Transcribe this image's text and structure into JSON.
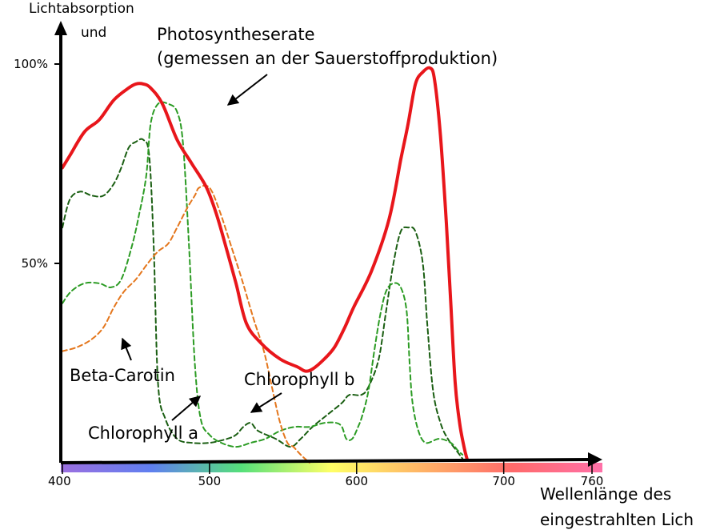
{
  "chart_data": {
    "type": "line",
    "y_axis": {
      "label_lines": [
        "Lichtabsorption",
        "und"
      ],
      "ticks": [
        {
          "value": 50,
          "label": "50%"
        },
        {
          "value": 100,
          "label": "100%"
        }
      ],
      "ylim": [
        0,
        100
      ]
    },
    "x_axis": {
      "label_lines": [
        "Wellenlänge des",
        "eingestrahlten Lich"
      ],
      "ticks": [
        {
          "value": 400,
          "label": "400"
        },
        {
          "value": 500,
          "label": "500"
        },
        {
          "value": 600,
          "label": "600"
        },
        {
          "value": 700,
          "label": "700"
        },
        {
          "value": 760,
          "label": "760"
        }
      ],
      "xlim": [
        400,
        760
      ],
      "spectrum_colors": [
        "#9c6fe0",
        "#5f7ff0",
        "#55e07a",
        "#ffff66",
        "#ffb366",
        "#ff6a6a",
        "#ff70a8"
      ]
    },
    "grid": false,
    "series": [
      {
        "name": "Photosyntheserate",
        "color": "#e8161b",
        "dashed": false,
        "points": [
          [
            400,
            74
          ],
          [
            405,
            77
          ],
          [
            415,
            83
          ],
          [
            425,
            86
          ],
          [
            435,
            91
          ],
          [
            445,
            94
          ],
          [
            450,
            95
          ],
          [
            455,
            95
          ],
          [
            460,
            94
          ],
          [
            468,
            90
          ],
          [
            478,
            81
          ],
          [
            488,
            75
          ],
          [
            498,
            69
          ],
          [
            505,
            62
          ],
          [
            512,
            53
          ],
          [
            518,
            45
          ],
          [
            525,
            35
          ],
          [
            535,
            30
          ],
          [
            548,
            26
          ],
          [
            560,
            24
          ],
          [
            565,
            23
          ],
          [
            570,
            23.5
          ],
          [
            578,
            26
          ],
          [
            585,
            29
          ],
          [
            592,
            34
          ],
          [
            598,
            39
          ],
          [
            610,
            48
          ],
          [
            622,
            61
          ],
          [
            630,
            76
          ],
          [
            635,
            85
          ],
          [
            640,
            95
          ],
          [
            645,
            98
          ],
          [
            650,
            99
          ],
          [
            653,
            96
          ],
          [
            657,
            82
          ],
          [
            661,
            60
          ],
          [
            664,
            40
          ],
          [
            667,
            20
          ],
          [
            670,
            10
          ],
          [
            673,
            4
          ],
          [
            675,
            1
          ]
        ]
      },
      {
        "name": "Chlorophyll a",
        "color": "#1a5e12",
        "dashed": true,
        "points": [
          [
            400,
            59
          ],
          [
            405,
            66
          ],
          [
            412,
            68
          ],
          [
            420,
            67
          ],
          [
            428,
            67
          ],
          [
            435,
            70
          ],
          [
            440,
            74
          ],
          [
            445,
            79
          ],
          [
            450,
            80.5
          ],
          [
            455,
            81
          ],
          [
            459,
            77
          ],
          [
            462,
            55
          ],
          [
            465,
            20
          ],
          [
            470,
            11
          ],
          [
            478,
            6
          ],
          [
            488,
            5
          ],
          [
            500,
            5
          ],
          [
            512,
            6
          ],
          [
            518,
            7
          ],
          [
            523,
            9
          ],
          [
            528,
            10
          ],
          [
            533,
            8
          ],
          [
            545,
            6
          ],
          [
            555,
            4
          ],
          [
            562,
            6
          ],
          [
            570,
            9
          ],
          [
            580,
            12
          ],
          [
            590,
            15
          ],
          [
            595,
            17
          ],
          [
            603,
            17
          ],
          [
            608,
            19
          ],
          [
            615,
            26
          ],
          [
            620,
            38
          ],
          [
            625,
            50
          ],
          [
            630,
            58
          ],
          [
            635,
            59
          ],
          [
            640,
            58
          ],
          [
            645,
            50
          ],
          [
            648,
            35
          ],
          [
            652,
            18
          ],
          [
            657,
            10
          ],
          [
            662,
            6
          ],
          [
            668,
            3
          ],
          [
            672,
            1
          ]
        ]
      },
      {
        "name": "Chlorophyll b",
        "color": "#2b9b23",
        "dashed": true,
        "points": [
          [
            400,
            40
          ],
          [
            406,
            43
          ],
          [
            415,
            45
          ],
          [
            425,
            45
          ],
          [
            433,
            44
          ],
          [
            440,
            46
          ],
          [
            447,
            54
          ],
          [
            452,
            62
          ],
          [
            457,
            72
          ],
          [
            460,
            85
          ],
          [
            465,
            90
          ],
          [
            472,
            90
          ],
          [
            478,
            88
          ],
          [
            482,
            80
          ],
          [
            486,
            55
          ],
          [
            490,
            25
          ],
          [
            494,
            11
          ],
          [
            500,
            7
          ],
          [
            508,
            5
          ],
          [
            518,
            4
          ],
          [
            528,
            5
          ],
          [
            538,
            6
          ],
          [
            548,
            8
          ],
          [
            558,
            9
          ],
          [
            568,
            9
          ],
          [
            578,
            10
          ],
          [
            586,
            10
          ],
          [
            590,
            9
          ],
          [
            593,
            6
          ],
          [
            597,
            6
          ],
          [
            601,
            9
          ],
          [
            604,
            12
          ],
          [
            608,
            18
          ],
          [
            612,
            28
          ],
          [
            616,
            37
          ],
          [
            620,
            43
          ],
          [
            625,
            45
          ],
          [
            630,
            44
          ],
          [
            634,
            38
          ],
          [
            636,
            25
          ],
          [
            638,
            15
          ],
          [
            642,
            8
          ],
          [
            647,
            5
          ],
          [
            656,
            6
          ],
          [
            664,
            5
          ],
          [
            669,
            3
          ],
          [
            672,
            2
          ]
        ]
      },
      {
        "name": "Beta-Carotin",
        "color": "#e4761c",
        "dashed": true,
        "points": [
          [
            400,
            28
          ],
          [
            410,
            29
          ],
          [
            420,
            31
          ],
          [
            428,
            34
          ],
          [
            435,
            39
          ],
          [
            442,
            43
          ],
          [
            450,
            46
          ],
          [
            458,
            50
          ],
          [
            465,
            53
          ],
          [
            472,
            55
          ],
          [
            478,
            59
          ],
          [
            485,
            64
          ],
          [
            490,
            67
          ],
          [
            493,
            69
          ],
          [
            500,
            69
          ],
          [
            507,
            63
          ],
          [
            515,
            54
          ],
          [
            522,
            46
          ],
          [
            530,
            36
          ],
          [
            537,
            28
          ],
          [
            543,
            18
          ],
          [
            548,
            10
          ],
          [
            553,
            5
          ],
          [
            557,
            4
          ],
          [
            562,
            2
          ],
          [
            568,
            0
          ]
        ]
      }
    ],
    "annotations": {
      "photosynthese_lines": [
        "Photosyntheserate",
        "(gemessen an der Sauerstoffproduktion)"
      ],
      "beta_carotin": "Beta-Carotin",
      "chlorophyll_a": "Chlorophyll a",
      "chlorophyll_b": "Chlorophyll b"
    }
  }
}
